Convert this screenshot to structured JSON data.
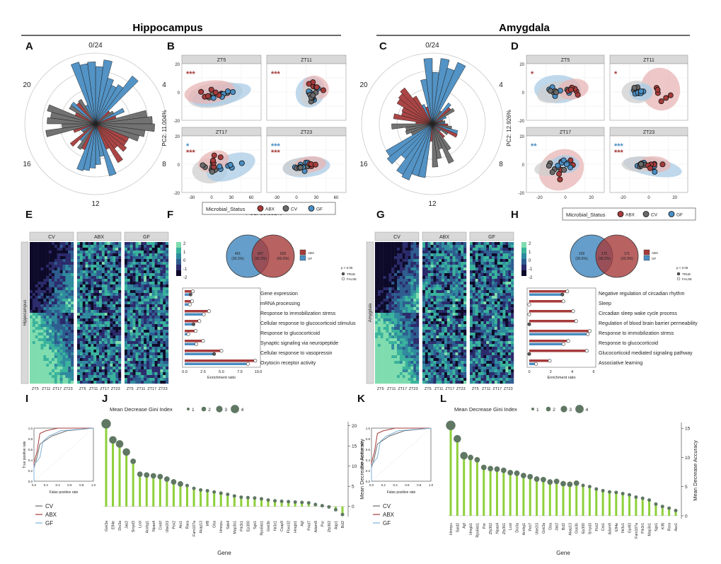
{
  "headers": {
    "hippocampus": "Hippocampus",
    "amygdala": "Amygdala"
  },
  "panel_letters": [
    "A",
    "B",
    "C",
    "D",
    "E",
    "F",
    "G",
    "H",
    "I",
    "J",
    "K",
    "L"
  ],
  "colors": {
    "abx": "#a63b3b",
    "cv": "#6a6a6a",
    "gf": "#4a8dc2",
    "abx_fill": "#e8b5b5",
    "cv_fill": "#cfcfcf",
    "gf_fill": "#a9cbe6",
    "green": "#8ed03a",
    "dot": "#5f7763"
  },
  "rose": {
    "labels": [
      "0/24",
      "4",
      "8",
      "12",
      "16",
      "20"
    ]
  },
  "pca_B": {
    "facets": [
      "ZT5",
      "ZT11",
      "ZT17",
      "ZT23"
    ],
    "xlabel": "PC1: 38.392%",
    "ylabel": "PC2: 11.004%",
    "xticks": [
      "-30",
      "0",
      "30",
      "60"
    ],
    "yticks": [
      "20",
      "10",
      "0",
      "-10",
      "-20"
    ],
    "stars": [
      [
        {
          "t": "***",
          "c": "abx"
        }
      ],
      [
        {
          "t": "***",
          "c": "abx"
        }
      ],
      [
        {
          "t": "*",
          "c": "gf"
        },
        {
          "t": "***",
          "c": "abx"
        }
      ],
      [
        {
          "t": "***",
          "c": "gf"
        },
        {
          "t": "***",
          "c": "abx"
        }
      ]
    ]
  },
  "pca_D": {
    "facets": [
      "ZT5",
      "ZT11",
      "ZT17",
      "ZT23"
    ],
    "xlabel": "PC1: 20.589%",
    "ylabel": "PC2: 12.926%",
    "xticks": [
      "-20",
      "0",
      "20"
    ],
    "yticks": [
      "20",
      "10",
      "0",
      "-10",
      "-20"
    ],
    "stars": [
      [
        {
          "t": "*",
          "c": "abx"
        }
      ],
      [
        {
          "t": "*",
          "c": "abx"
        }
      ],
      [
        {
          "t": "**",
          "c": "gf"
        }
      ],
      [
        {
          "t": "***",
          "c": "gf"
        },
        {
          "t": "***",
          "c": "abx"
        }
      ]
    ]
  },
  "legend_status": {
    "title": "Microbial_Status",
    "items": [
      "ABX",
      "CV",
      "GF"
    ]
  },
  "heatmap_E": {
    "groups": [
      "CV",
      "ABX",
      "GF"
    ],
    "side": "Hippocampus",
    "cols": [
      "ZT5",
      "ZT11",
      "ZT17",
      "ZT23"
    ],
    "scale": [
      "2",
      "1",
      "0",
      "-1",
      "-2"
    ]
  },
  "heatmap_G": {
    "groups": [
      "CV",
      "ABX",
      "GF"
    ],
    "side": "Amygdala",
    "cols": [
      "ZT5",
      "ZT11",
      "ZT17",
      "ZT23"
    ],
    "scale": [
      "2",
      "1",
      "0",
      "-1",
      "-2"
    ]
  },
  "venn_F": {
    "left": "491\n(30.2%)",
    "mid": "607\n(30.2%)",
    "right": "929\n(60.6%)",
    "legend": [
      "ABX",
      "GF"
    ]
  },
  "venn_H": {
    "left": "109\n(30.6%)",
    "mid": "176\n(39.2%)",
    "right": "171\n(33.9%)",
    "legend": [
      "ABX",
      "GF"
    ]
  },
  "p_legend": {
    "title": "p < 0.05",
    "items": [
      "TRUE",
      "FALSE"
    ]
  },
  "enrich_F": {
    "terms": [
      "Gene expression",
      "mRNA processing",
      "Response to immobilization stress",
      "Cellular response to glucocorticoid stimulus",
      "Response to glucocorticoid",
      "Synaptic signaling via neuropeptide",
      "Cellular response to vasopressin",
      "Oxytocin receptor activity"
    ],
    "xticks": [
      "0.0",
      "2.5",
      "5.0",
      "7.5",
      "10.0"
    ],
    "xmax": 10,
    "xlabel": "Enrichment ratio",
    "abx": [
      1.1,
      1.0,
      3.3,
      2.0,
      1.5,
      2.5,
      5.0,
      9.6
    ],
    "gf": [
      0.8,
      0.7,
      2.6,
      1.2,
      0.5,
      1.6,
      4.0,
      8.6
    ]
  },
  "enrich_H": {
    "terms": [
      "Negative regulation of circadian rhythm",
      "Sleep",
      "Circadian sleep wake cycle process",
      "Regulation of blood brain barrier permeability",
      "Response to immobilization stress",
      "Response to glucocorticoid",
      "Glucocorticoid mediated signaling pathway",
      "Associative learning"
    ],
    "xticks": [
      "0",
      "2",
      "4",
      "6"
    ],
    "xmax": 6.6,
    "xlabel": "Enrichment ratio",
    "abx": [
      3.9,
      3.5,
      4.5,
      4.8,
      6.2,
      4.0,
      5.9,
      2.1
    ],
    "gf": [
      3.4,
      0.0,
      0.0,
      0.0,
      6.0,
      3.5,
      0.0,
      0.7
    ]
  },
  "roc": {
    "xlabel": "False positive rate",
    "ylabel": "True positive rate",
    "ticks": [
      "0.0",
      "0.2",
      "0.4",
      "0.6",
      "0.8",
      "1.0"
    ],
    "legend": [
      "CV",
      "ABX",
      "GF"
    ]
  },
  "lollipop_J": {
    "genes": [
      "Gsk3a",
      "Efl4e",
      "Dio3a",
      "Jak2",
      "Smyd3",
      "Lcot",
      "Acvbg1",
      "Npas4",
      "Crebf",
      "Ube2i3",
      "Pck2",
      "Arc1",
      "Rara",
      "Fam107a",
      "Akap13",
      "Irf8",
      "Gba",
      "Hmnpu",
      "Sdk4",
      "Map3k1",
      "Pik3r1",
      "Ep300",
      "Sgk1",
      "Rps6kb1",
      "Gsk3b",
      "Nr3c1",
      "Csap9",
      "Fbxo32",
      "Hmgb1",
      "Agt",
      "Prkd7",
      "Adam9",
      "Por",
      "Zfp362",
      "Aqp1",
      "Bcl2"
    ],
    "values": [
      20.5,
      16.5,
      15.5,
      13.5,
      11.2,
      8.0,
      7.8,
      7.6,
      7.4,
      6.8,
      6.1,
      5.6,
      5.2,
      4.5,
      4.1,
      3.9,
      3.6,
      3.3,
      3.0,
      2.6,
      2.3,
      2.2,
      2.1,
      1.9,
      1.6,
      1.4,
      1.3,
      1.2,
      1.1,
      1.0,
      0.9,
      0.5,
      0.2,
      -0.1,
      -0.8,
      -2.0
    ],
    "gini": [
      4,
      3,
      3,
      3,
      2,
      2,
      2,
      2,
      2,
      2,
      2,
      2,
      1,
      1,
      1,
      1,
      1,
      1,
      1,
      1,
      1,
      1,
      1,
      1,
      1,
      1,
      1,
      1,
      1,
      1,
      1,
      1,
      1,
      1,
      1,
      1
    ],
    "yticks": [
      "20",
      "15",
      "10",
      "5",
      "0"
    ],
    "ymin": -2.5,
    "ymax": 21,
    "xlabel": "Gene",
    "ylabel": "Mean Decrease Accuracy",
    "gini_title": "Mean Decrease Gini Index",
    "gini_levels": [
      "1",
      "2",
      "3",
      "4"
    ]
  },
  "lollipop_L": {
    "genes": [
      "Hnrnpu",
      "Sast2",
      "Agt",
      "Hmgb1",
      "Rps6kb1",
      "Por",
      "Zfp362",
      "Npas4",
      "Zfp361",
      "Lcot",
      "Dio3a",
      "Acvbg1",
      "Pck7",
      "Ube2i3",
      "Gsk3a",
      "Gba",
      "Jak2",
      "Bcl2",
      "Akap13",
      "Gsk3b",
      "Ep300",
      "Smyd3",
      "Pck2",
      "Crb1",
      "Adam9",
      "Efl4e",
      "Nr3c1",
      "Gpr83",
      "Fam107a",
      "Pik3r1",
      "Map3k1",
      "Sgk1",
      "Kif8",
      "Rora",
      "Asz1"
    ],
    "values": [
      15.5,
      13.2,
      10.3,
      10.0,
      9.6,
      8.3,
      8.1,
      8.0,
      7.8,
      7.4,
      7.3,
      6.9,
      6.7,
      6.3,
      6.2,
      5.8,
      5.9,
      5.5,
      5.4,
      5.6,
      5.2,
      5.0,
      4.6,
      4.3,
      4.1,
      4.0,
      3.8,
      3.6,
      3.2,
      3.0,
      2.7,
      2.0,
      1.6,
      1.3,
      0.9
    ],
    "gini": [
      4,
      3,
      3,
      2,
      2,
      2,
      2,
      2,
      2,
      2,
      2,
      2,
      2,
      2,
      2,
      2,
      2,
      2,
      2,
      2,
      1,
      1,
      1,
      1,
      1,
      1,
      1,
      1,
      1,
      1,
      1,
      1,
      1,
      1,
      1
    ],
    "yticks": [
      "15",
      "10",
      "5",
      "0"
    ],
    "ymin": -0.5,
    "ymax": 16,
    "xlabel": "Gene",
    "ylabel": "Mean Decrease Accuracy",
    "gini_title": "Mean Decrease Gini Index",
    "gini_levels": [
      "1",
      "2",
      "3",
      "4"
    ]
  }
}
